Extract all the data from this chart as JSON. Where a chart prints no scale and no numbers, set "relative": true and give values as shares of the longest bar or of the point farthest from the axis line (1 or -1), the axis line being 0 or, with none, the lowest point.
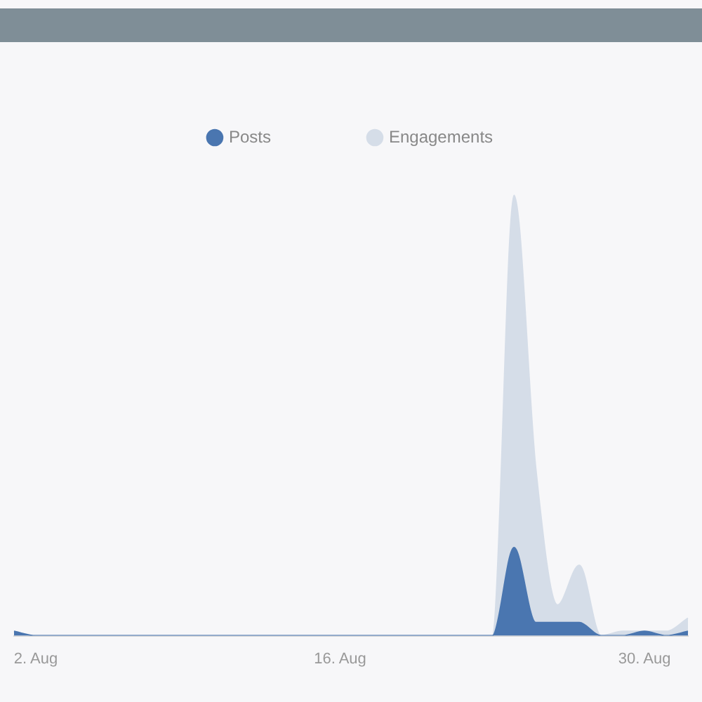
{
  "chart_data": {
    "type": "area",
    "relative": true,
    "legend": "top",
    "grid": false,
    "marker": "none",
    "categories": [
      null,
      "2. Aug",
      null,
      null,
      null,
      null,
      null,
      null,
      null,
      null,
      null,
      null,
      null,
      null,
      null,
      "16. Aug",
      null,
      null,
      null,
      null,
      null,
      null,
      null,
      null,
      null,
      null,
      null,
      null,
      null,
      "30. Aug",
      null,
      null
    ],
    "series": [
      {
        "name": "Posts",
        "color": "#4a76b0",
        "values": [
          0.01,
          0,
          0,
          0,
          0,
          0,
          0,
          0,
          0,
          0,
          0,
          0,
          0,
          0,
          0,
          0,
          0,
          0,
          0,
          0,
          0,
          0,
          0,
          0.2,
          0.03,
          0.03,
          0.03,
          0,
          0,
          0.01,
          0,
          0.01
        ]
      },
      {
        "name": "Engagements",
        "color": "#d5dde8",
        "values": [
          0.01,
          0,
          0,
          0,
          0,
          0,
          0,
          0,
          0,
          0,
          0,
          0,
          0,
          0,
          0,
          0,
          0,
          0,
          0,
          0,
          0,
          0,
          0,
          1,
          0.38,
          0.07,
          0.16,
          0,
          0.01,
          0.01,
          0.01,
          0.04
        ]
      }
    ]
  }
}
